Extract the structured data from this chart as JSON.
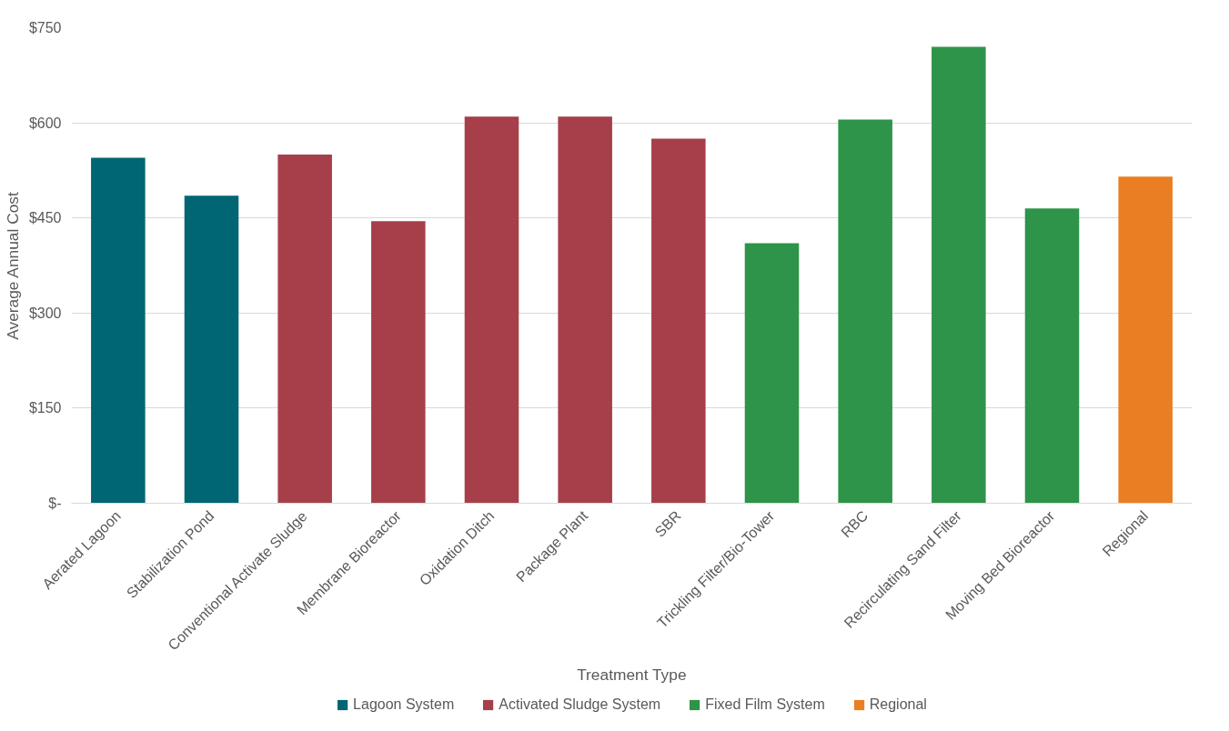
{
  "chart_data": {
    "type": "bar",
    "xlabel": "Treatment Type",
    "ylabel": "Average Annual Cost",
    "categories": [
      "Aerated Lagoon",
      "Stabilization Pond",
      "Conventional Activate Sludge",
      "Membrane Bioreactor",
      "Oxidation Ditch",
      "Package Plant",
      "SBR",
      "Trickling Filter/Bio-Tower",
      "RBC",
      "Recirculating Sand Filter",
      "Moving Bed Bioreactor",
      "Regional"
    ],
    "series": [
      {
        "name": "Lagoon System",
        "color": "#006673",
        "values": [
          545,
          485,
          null,
          null,
          null,
          null,
          null,
          null,
          null,
          null,
          null,
          null
        ]
      },
      {
        "name": "Activated Sludge System",
        "color": "#a63f4a",
        "values": [
          null,
          null,
          550,
          445,
          610,
          610,
          575,
          null,
          null,
          null,
          null,
          null
        ]
      },
      {
        "name": "Fixed Film System",
        "color": "#2e9449",
        "values": [
          null,
          null,
          null,
          null,
          null,
          null,
          null,
          410,
          605,
          720,
          465,
          null
        ]
      },
      {
        "name": "Regional",
        "color": "#e97e22",
        "values": [
          null,
          null,
          null,
          null,
          null,
          null,
          null,
          null,
          null,
          null,
          null,
          515
        ]
      }
    ],
    "ylim": [
      0,
      750
    ],
    "yticks": [
      {
        "value": 0,
        "label": "$-"
      },
      {
        "value": 150,
        "label": "$150"
      },
      {
        "value": 300,
        "label": "$300"
      },
      {
        "value": 450,
        "label": "$450"
      },
      {
        "value": 600,
        "label": "$600"
      },
      {
        "value": 750,
        "label": "$750"
      }
    ],
    "grid": "y",
    "legend": "bottom"
  }
}
